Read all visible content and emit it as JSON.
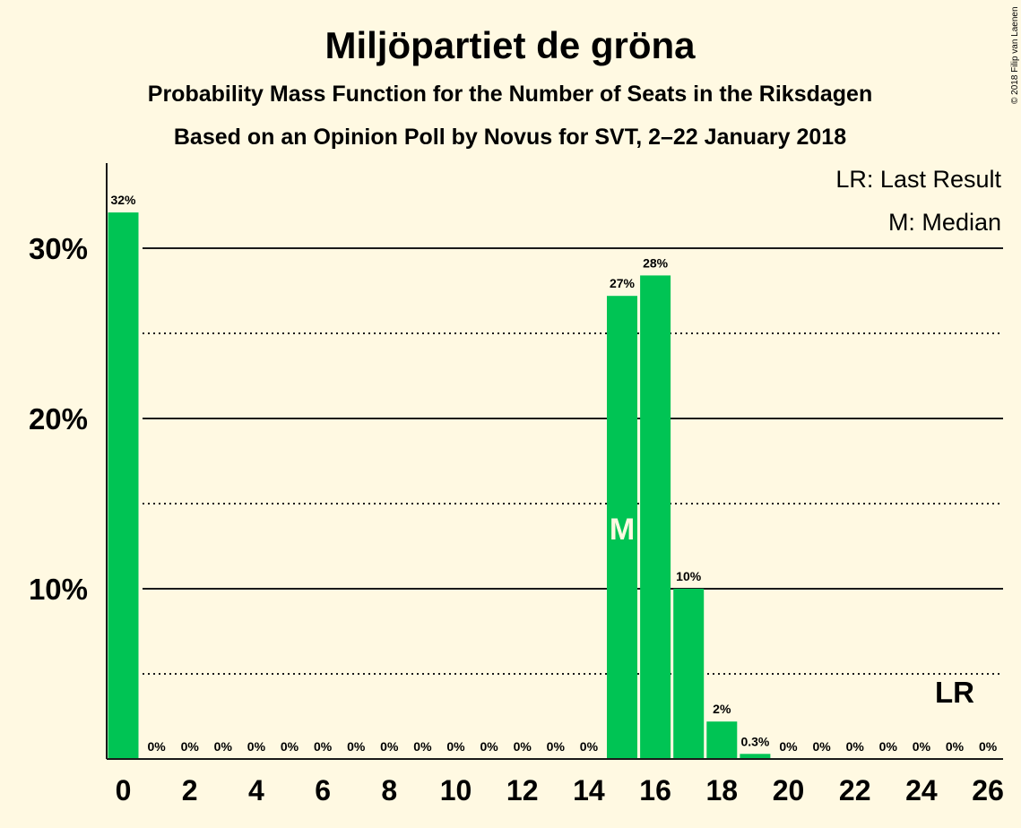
{
  "chart_data": {
    "type": "bar",
    "title": "Miljöpartiet de gröna",
    "subtitle_1": "Probability Mass Function for the Number of Seats in the Riksdagen",
    "subtitle_2": "Based on an Opinion Poll by Novus for SVT, 2–22 January 2018",
    "legend": [
      "LR: Last Result",
      "M: Median"
    ],
    "copyright": "© 2018 Filip van Laenen",
    "x": [
      0,
      1,
      2,
      3,
      4,
      5,
      6,
      7,
      8,
      9,
      10,
      11,
      12,
      13,
      14,
      15,
      16,
      17,
      18,
      19,
      20,
      21,
      22,
      23,
      24,
      25,
      26
    ],
    "values": [
      32.1,
      0,
      0,
      0,
      0,
      0,
      0,
      0,
      0,
      0,
      0,
      0,
      0,
      0,
      0,
      27.2,
      28.4,
      10.0,
      2.2,
      0.3,
      0,
      0,
      0,
      0,
      0,
      0,
      0
    ],
    "value_labels": [
      "32%",
      "0%",
      "0%",
      "0%",
      "0%",
      "0%",
      "0%",
      "0%",
      "0%",
      "0%",
      "0%",
      "0%",
      "0%",
      "0%",
      "0%",
      "27%",
      "28%",
      "10%",
      "2%",
      "0.3%",
      "0%",
      "0%",
      "0%",
      "0%",
      "0%",
      "0%",
      "0%"
    ],
    "x_ticks": [
      "0",
      "2",
      "4",
      "6",
      "8",
      "10",
      "12",
      "14",
      "16",
      "18",
      "20",
      "22",
      "24",
      "26"
    ],
    "y_ticks": [
      "10%",
      "20%",
      "30%"
    ],
    "ylim": [
      0,
      35
    ],
    "median_seat": 15,
    "median_label": "M",
    "last_result_seat": 25,
    "last_result_label": "LR",
    "colors": {
      "bar": "#00C454",
      "background": "#FFF9E2",
      "text": "#1a1a1a"
    }
  }
}
